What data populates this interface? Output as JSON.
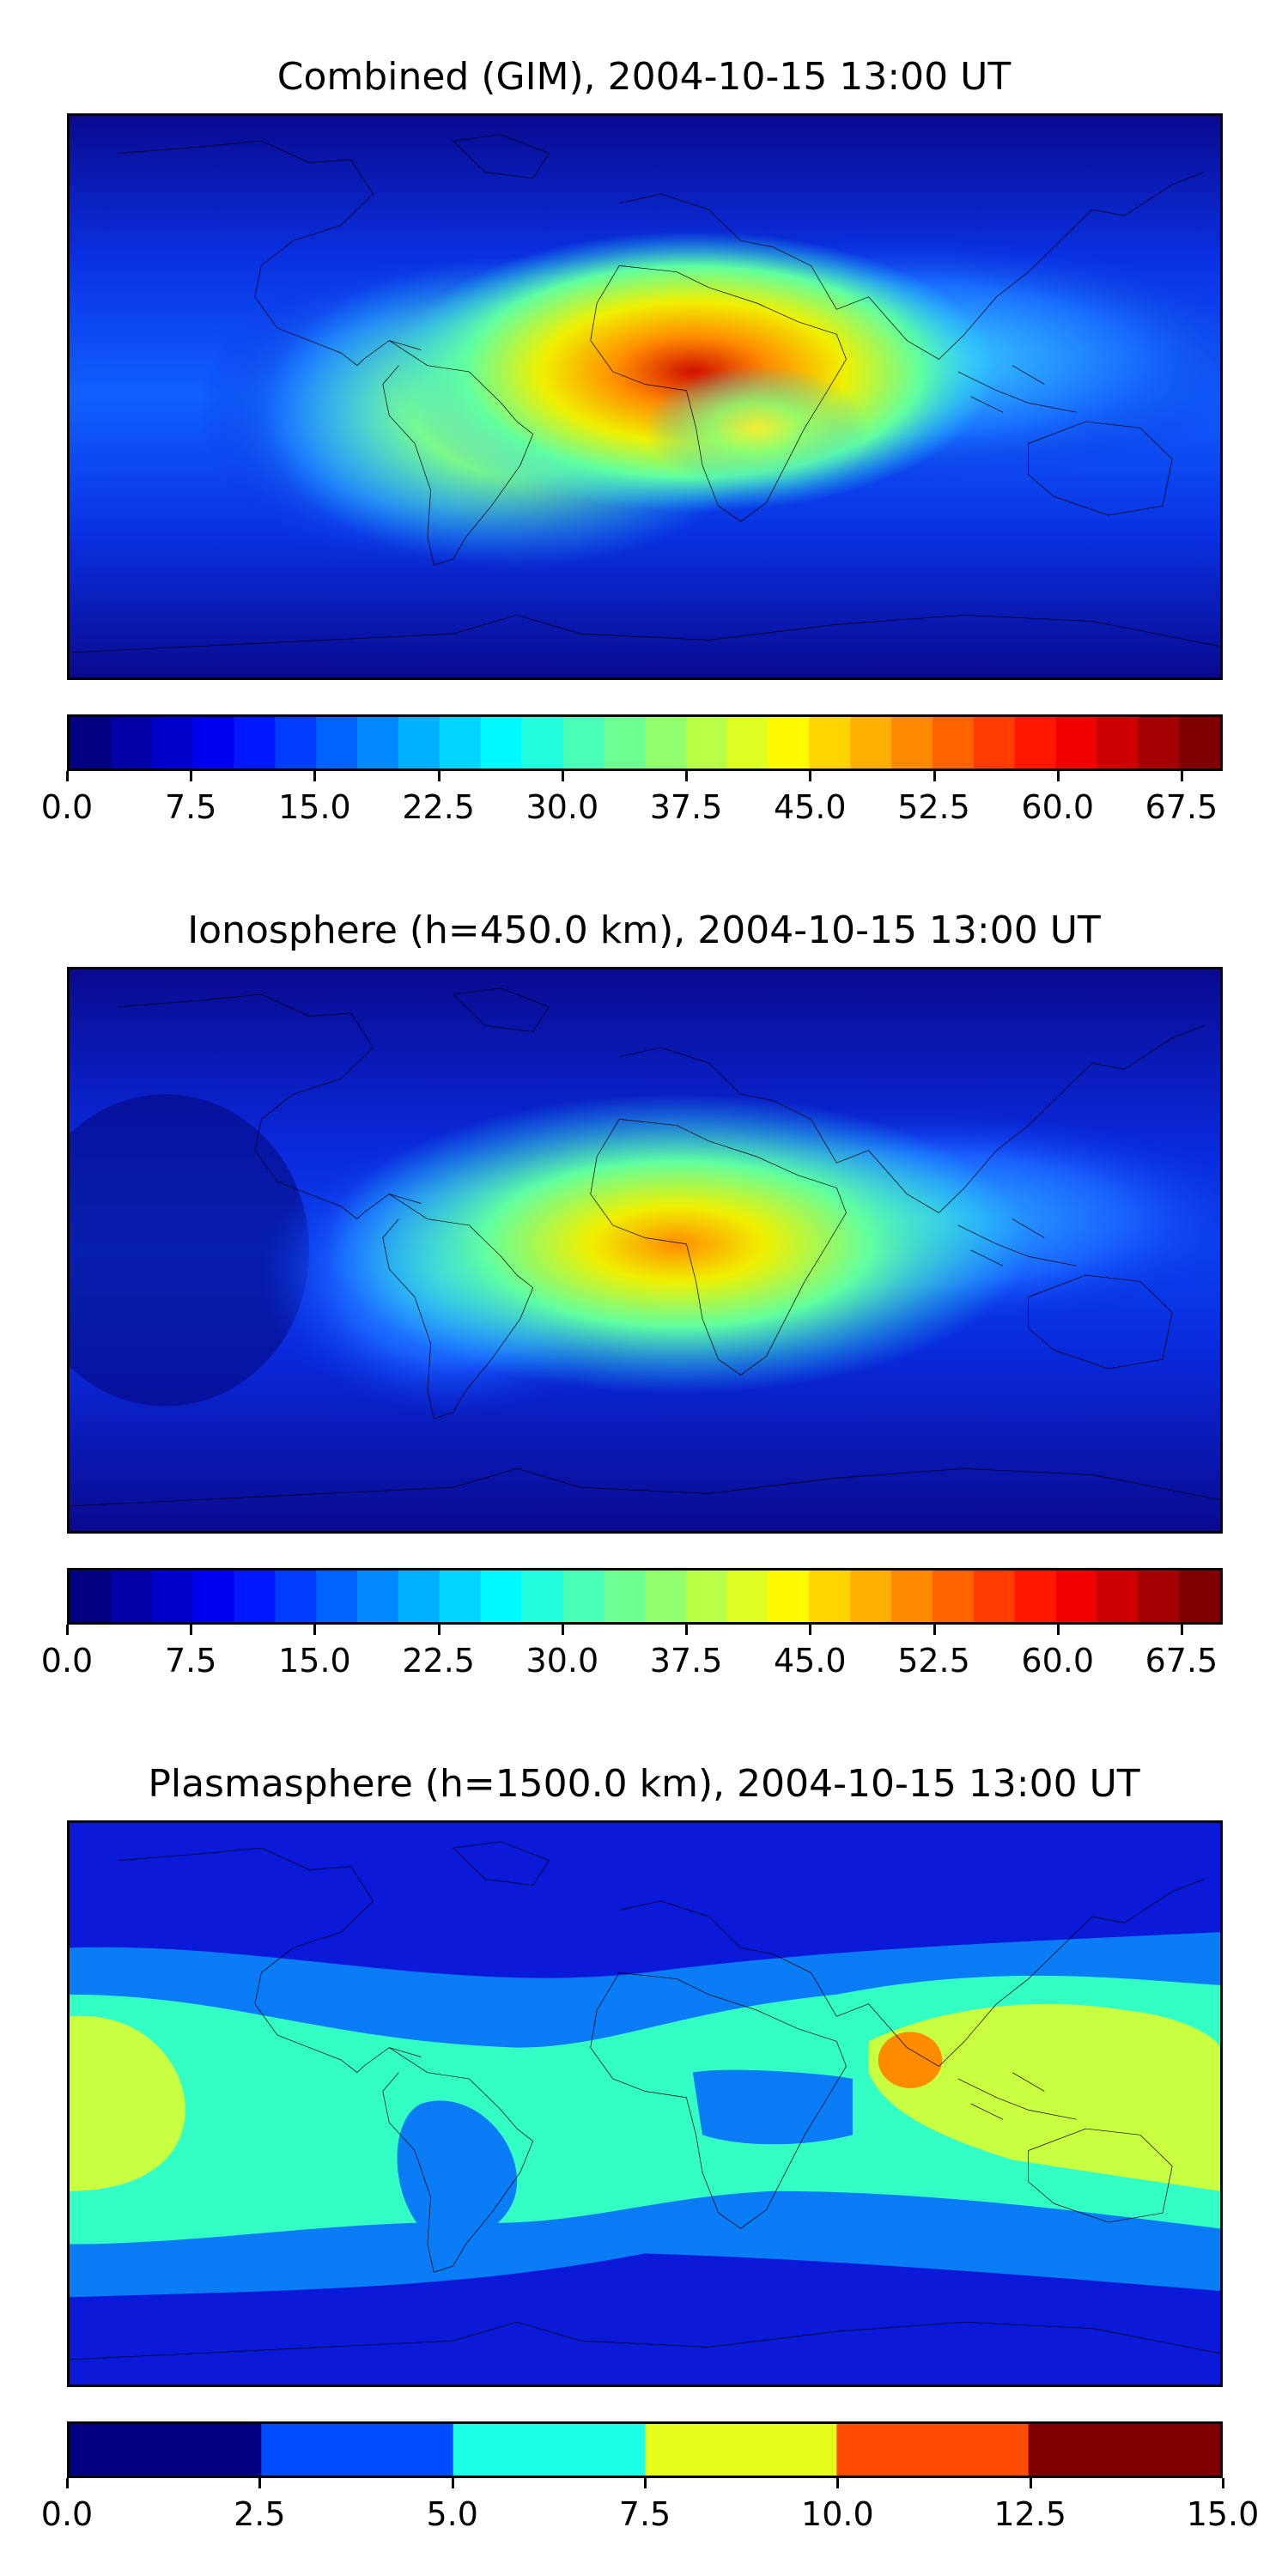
{
  "chart_data": [
    {
      "type": "heatmap",
      "title": "Combined (GIM), 2004-10-15 13:00 UT",
      "map": "world, equirectangular, coastlines",
      "colormap": "jet",
      "colorbar": {
        "min": 0.0,
        "max": 70.0,
        "levels": 28,
        "tick_labels": [
          "0.0",
          "7.5",
          "15.0",
          "22.5",
          "30.0",
          "37.5",
          "45.0",
          "52.5",
          "60.0",
          "67.5"
        ],
        "tick_values": [
          0.0,
          7.5,
          15.0,
          22.5,
          30.0,
          37.5,
          45.0,
          52.5,
          60.0,
          67.5
        ]
      },
      "field_features": [
        {
          "lon": 5,
          "lat": 10,
          "value": 65
        },
        {
          "lon": 30,
          "lat": -10,
          "value": 50
        },
        {
          "lon": -55,
          "lat": -15,
          "value": 40
        },
        {
          "lon": 110,
          "lat": 10,
          "value": 25
        },
        {
          "lon": 150,
          "lat": 0,
          "value": 15
        },
        {
          "lon": -140,
          "lat": 0,
          "value": 8
        },
        {
          "lon": 0,
          "lat": 75,
          "value": 3
        },
        {
          "lon": 0,
          "lat": -80,
          "value": 3
        }
      ]
    },
    {
      "type": "heatmap",
      "title": "Ionosphere  (h=450.0 km), 2004-10-15 13:00 UT",
      "map": "world, equirectangular, coastlines",
      "colormap": "jet",
      "colorbar": {
        "min": 0.0,
        "max": 70.0,
        "levels": 28,
        "tick_labels": [
          "0.0",
          "7.5",
          "15.0",
          "22.5",
          "30.0",
          "37.5",
          "45.0",
          "52.5",
          "60.0",
          "67.5"
        ],
        "tick_values": [
          0.0,
          7.5,
          15.0,
          22.5,
          30.0,
          37.5,
          45.0,
          52.5,
          60.0,
          67.5
        ]
      },
      "field_features": [
        {
          "lon": 0,
          "lat": 10,
          "value": 52
        },
        {
          "lon": 30,
          "lat": -10,
          "value": 42
        },
        {
          "lon": -55,
          "lat": -15,
          "value": 35
        },
        {
          "lon": 110,
          "lat": 10,
          "value": 22
        },
        {
          "lon": -140,
          "lat": 0,
          "value": 5
        },
        {
          "lon": 0,
          "lat": 75,
          "value": 2
        }
      ]
    },
    {
      "type": "heatmap",
      "title": "Plasmasphere (h=1500.0 km), 2004-10-15 13:00 UT",
      "map": "world, equirectangular, coastlines",
      "colormap": "jet",
      "colorbar": {
        "min": 0.0,
        "max": 15.0,
        "levels": 6,
        "tick_labels": [
          "0.0",
          "2.5",
          "5.0",
          "7.5",
          "10.0",
          "12.5",
          "15.0"
        ],
        "tick_values": [
          0.0,
          2.5,
          5.0,
          7.5,
          10.0,
          12.5,
          15.0
        ]
      },
      "field_features": [
        {
          "lon": 95,
          "lat": 18,
          "value": 11
        },
        {
          "lon": 130,
          "lat": 5,
          "value": 8.5
        },
        {
          "lon": -170,
          "lat": 0,
          "value": 8.5
        },
        {
          "lon": 20,
          "lat": 10,
          "value": 6
        },
        {
          "lon": -60,
          "lat": -20,
          "value": 4
        },
        {
          "lon": 0,
          "lat": 70,
          "value": 1.5
        },
        {
          "lon": 0,
          "lat": -75,
          "value": 1.5
        }
      ]
    }
  ]
}
